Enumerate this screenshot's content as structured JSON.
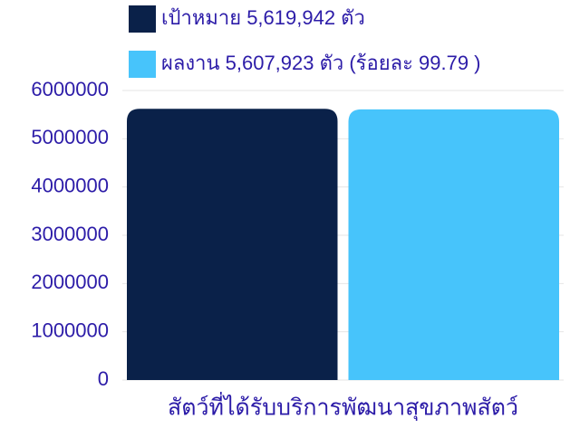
{
  "chart_data": {
    "type": "bar",
    "categories": [
      "สัตว์ที่ได้รับบริการพัฒนาสุขภาพสัตว์"
    ],
    "series": [
      {
        "name": "เป้าหมาย 5,619,942 ตัว",
        "color": "#0a2149",
        "values": [
          5619942
        ]
      },
      {
        "name": "ผลงาน 5,607,923 ตัว (ร้อยละ 99.79 )",
        "color": "#47c4fb",
        "values": [
          5607923
        ]
      }
    ],
    "ylim": [
      0,
      6000000
    ],
    "yticks": [
      0,
      1000000,
      2000000,
      3000000,
      4000000,
      5000000,
      6000000
    ],
    "grid": true,
    "legend": "top"
  }
}
